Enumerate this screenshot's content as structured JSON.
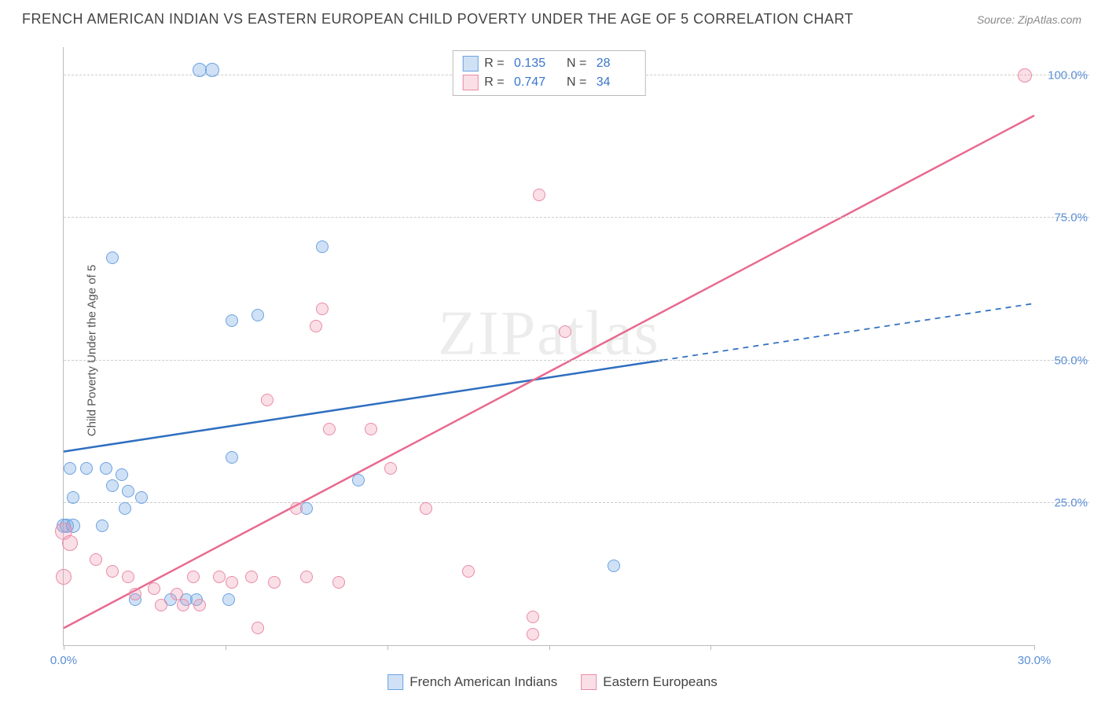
{
  "title": "FRENCH AMERICAN INDIAN VS EASTERN EUROPEAN CHILD POVERTY UNDER THE AGE OF 5 CORRELATION CHART",
  "source_label": "Source:",
  "source_value": "ZipAtlas.com",
  "y_axis_label": "Child Poverty Under the Age of 5",
  "watermark": "ZIPatlas",
  "chart": {
    "type": "scatter",
    "xlim": [
      0,
      30
    ],
    "ylim": [
      0,
      105
    ],
    "x_ticks": [
      0,
      5,
      10,
      15,
      20,
      30
    ],
    "x_tick_labels": {
      "0": "0.0%",
      "30": "30.0%"
    },
    "y_gridlines": [
      25,
      50,
      75,
      100
    ],
    "y_tick_labels": {
      "25": "25.0%",
      "50": "50.0%",
      "75": "75.0%",
      "100": "100.0%"
    },
    "grid_color": "#cccccc",
    "axis_color": "#bbbbbb",
    "background": "#ffffff",
    "tick_label_color": "#5a8fd6",
    "series": [
      {
        "id": "blue",
        "label": "French American Indians",
        "fill": "rgba(120,170,230,0.35)",
        "stroke": "#6aa3e0",
        "R": "0.135",
        "N": "28",
        "trend": {
          "color": "#2f6fc0",
          "width": 2.5,
          "y_at_x0": 34,
          "y_at_x30": 60,
          "solid_until_x": 18.5
        },
        "points": [
          {
            "x": 4.2,
            "y": 101,
            "r": 9
          },
          {
            "x": 4.6,
            "y": 101,
            "r": 9
          },
          {
            "x": 1.5,
            "y": 68,
            "r": 8
          },
          {
            "x": 8.0,
            "y": 70,
            "r": 8
          },
          {
            "x": 5.2,
            "y": 57,
            "r": 8
          },
          {
            "x": 6.0,
            "y": 58,
            "r": 8
          },
          {
            "x": 5.2,
            "y": 33,
            "r": 8
          },
          {
            "x": 0.2,
            "y": 31,
            "r": 8
          },
          {
            "x": 0.7,
            "y": 31,
            "r": 8
          },
          {
            "x": 1.3,
            "y": 31,
            "r": 8
          },
          {
            "x": 1.8,
            "y": 30,
            "r": 8
          },
          {
            "x": 1.5,
            "y": 28,
            "r": 8
          },
          {
            "x": 2.0,
            "y": 27,
            "r": 8
          },
          {
            "x": 0.3,
            "y": 26,
            "r": 8
          },
          {
            "x": 2.4,
            "y": 26,
            "r": 8
          },
          {
            "x": 1.9,
            "y": 24,
            "r": 8
          },
          {
            "x": 0.0,
            "y": 21,
            "r": 9
          },
          {
            "x": 0.1,
            "y": 21,
            "r": 9
          },
          {
            "x": 0.3,
            "y": 21,
            "r": 9
          },
          {
            "x": 1.2,
            "y": 21,
            "r": 8
          },
          {
            "x": 7.5,
            "y": 24,
            "r": 8
          },
          {
            "x": 9.1,
            "y": 29,
            "r": 8
          },
          {
            "x": 2.2,
            "y": 8,
            "r": 8
          },
          {
            "x": 3.3,
            "y": 8,
            "r": 8
          },
          {
            "x": 3.8,
            "y": 8,
            "r": 8
          },
          {
            "x": 4.1,
            "y": 8,
            "r": 8
          },
          {
            "x": 5.1,
            "y": 8,
            "r": 8
          },
          {
            "x": 17.0,
            "y": 14,
            "r": 8
          }
        ]
      },
      {
        "id": "pink",
        "label": "Eastern Europeans",
        "fill": "rgba(240,150,175,0.3)",
        "stroke": "#e98ba5",
        "R": "0.747",
        "N": "34",
        "trend": {
          "color": "#e86a8e",
          "width": 2.5,
          "y_at_x0": 3,
          "y_at_x30": 93,
          "solid_until_x": 30
        },
        "points": [
          {
            "x": 29.7,
            "y": 100,
            "r": 9
          },
          {
            "x": 14.7,
            "y": 79,
            "r": 8
          },
          {
            "x": 8.0,
            "y": 59,
            "r": 8
          },
          {
            "x": 7.8,
            "y": 56,
            "r": 8
          },
          {
            "x": 15.5,
            "y": 55,
            "r": 8
          },
          {
            "x": 6.3,
            "y": 43,
            "r": 8
          },
          {
            "x": 8.2,
            "y": 38,
            "r": 8
          },
          {
            "x": 9.5,
            "y": 38,
            "r": 8
          },
          {
            "x": 10.1,
            "y": 31,
            "r": 8
          },
          {
            "x": 7.2,
            "y": 24,
            "r": 8
          },
          {
            "x": 11.2,
            "y": 24,
            "r": 8
          },
          {
            "x": 12.5,
            "y": 13,
            "r": 8
          },
          {
            "x": 14.5,
            "y": 5,
            "r": 8
          },
          {
            "x": 14.5,
            "y": 2,
            "r": 8
          },
          {
            "x": 0.0,
            "y": 20,
            "r": 11
          },
          {
            "x": 0.2,
            "y": 18,
            "r": 10
          },
          {
            "x": 0.0,
            "y": 12,
            "r": 10
          },
          {
            "x": 1.0,
            "y": 15,
            "r": 8
          },
          {
            "x": 1.5,
            "y": 13,
            "r": 8
          },
          {
            "x": 2.0,
            "y": 12,
            "r": 8
          },
          {
            "x": 2.2,
            "y": 9,
            "r": 8
          },
          {
            "x": 2.8,
            "y": 10,
            "r": 8
          },
          {
            "x": 3.0,
            "y": 7,
            "r": 8
          },
          {
            "x": 3.5,
            "y": 9,
            "r": 8
          },
          {
            "x": 3.7,
            "y": 7,
            "r": 8
          },
          {
            "x": 4.0,
            "y": 12,
            "r": 8
          },
          {
            "x": 4.2,
            "y": 7,
            "r": 8
          },
          {
            "x": 4.8,
            "y": 12,
            "r": 8
          },
          {
            "x": 5.2,
            "y": 11,
            "r": 8
          },
          {
            "x": 5.8,
            "y": 12,
            "r": 8
          },
          {
            "x": 6.0,
            "y": 3,
            "r": 8
          },
          {
            "x": 6.5,
            "y": 11,
            "r": 8
          },
          {
            "x": 7.5,
            "y": 12,
            "r": 8
          },
          {
            "x": 8.5,
            "y": 11,
            "r": 8
          }
        ]
      }
    ]
  },
  "legend_bottom": [
    {
      "series": "blue",
      "label": "French American Indians"
    },
    {
      "series": "pink",
      "label": "Eastern Europeans"
    }
  ]
}
